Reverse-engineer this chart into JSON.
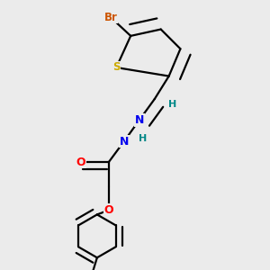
{
  "bg_color": "#ebebeb",
  "atom_colors": {
    "Br": "#cc5500",
    "S": "#ccaa00",
    "N": "#0000ee",
    "O": "#ff0000",
    "C": "#000000",
    "H": "#008888"
  },
  "bond_lw": 1.6,
  "font_size_atom": 9,
  "font_size_H": 8
}
